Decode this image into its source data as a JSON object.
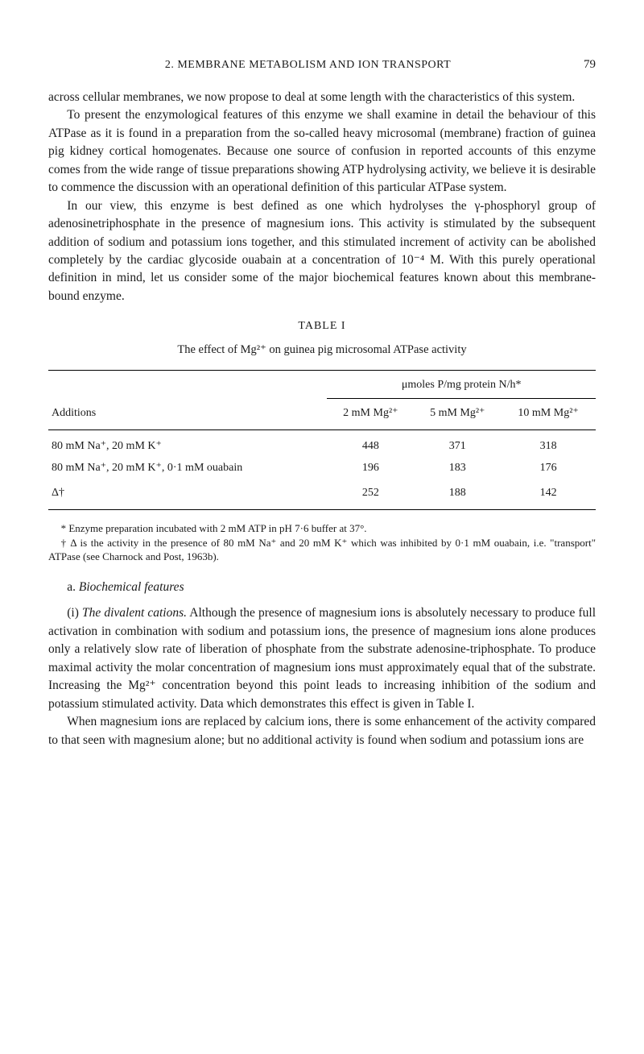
{
  "header": {
    "title": "2. MEMBRANE METABOLISM AND ION TRANSPORT",
    "page": "79"
  },
  "paragraphs": {
    "p1": "across cellular membranes, we now propose to deal at some length with the characteristics of this system.",
    "p2": "To present the enzymological features of this enzyme we shall examine in detail the behaviour of this ATPase as it is found in a preparation from the so-called heavy microsomal (membrane) fraction of guinea pig kidney cortical homogenates. Because one source of confusion in reported accounts of this enzyme comes from the wide range of tissue preparations showing ATP hydrolysing activity, we believe it is desirable to commence the discussion with an operational definition of this particular ATPase system.",
    "p3": "In our view, this enzyme is best defined as one which hydrolyses the γ-phosphoryl group of adenosinetriphosphate in the presence of magnesium ions. This activity is stimulated by the subsequent addition of sodium and potassium ions together, and this stimulated increment of activity can be abolished completely by the cardiac glycoside ouabain at a concentration of 10⁻⁴ M. With this purely operational definition in mind, let us consider some of the major biochemical features known about this membrane-bound enzyme."
  },
  "table": {
    "label": "TABLE I",
    "caption": "The effect of Mg²⁺ on guinea pig microsomal ATPase activity",
    "super_header": "μmoles P/mg protein N/h*",
    "col_headers": [
      "Additions",
      "2 mM Mg²⁺",
      "5 mM Mg²⁺",
      "10 mM Mg²⁺"
    ],
    "rows": [
      [
        "80 mM Na⁺, 20 mM K⁺",
        "448",
        "371",
        "318"
      ],
      [
        "80 mM Na⁺, 20 mM K⁺, 0·1 mM ouabain",
        "196",
        "183",
        "176"
      ],
      [
        "Δ†",
        "252",
        "188",
        "142"
      ]
    ]
  },
  "footnotes": {
    "f1": "* Enzyme preparation incubated with 2 mM ATP in pH 7·6 buffer at 37°.",
    "f2": "† Δ is the activity in the presence of 80 mM Na⁺ and 20 mM K⁺ which was inhibited by 0·1 mM ouabain, i.e. \"transport\" ATPase (see Charnock and Post, 1963b)."
  },
  "section": {
    "heading_label": "a.",
    "heading_text": "Biochemical features",
    "p4_label": "(i)",
    "p4_italic": "The divalent cations.",
    "p4_rest": " Although the presence of magnesium ions is absolutely necessary to produce full activation in combination with sodium and potassium ions, the presence of magnesium ions alone produces only a relatively slow rate of liberation of phosphate from the substrate adenosine-triphosphate. To produce maximal activity the molar concentration of magnesium ions must approximately equal that of the substrate. Increasing the Mg²⁺ concentration beyond this point leads to increasing inhibition of the sodium and potassium stimulated activity. Data which demonstrates this effect is given in Table I.",
    "p5": "When magnesium ions are replaced by calcium ions, there is some enhancement of the activity compared to that seen with magnesium alone; but no additional activity is found when sodium and potassium ions are"
  }
}
